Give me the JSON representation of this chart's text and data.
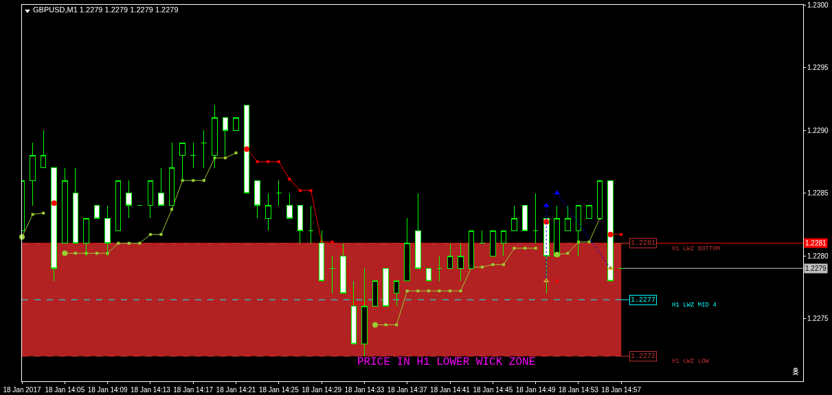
{
  "chart_data": {
    "type": "candlestick",
    "title": "GBPUSD,M1 1.2279 1.2279 1.2279 1.2279",
    "x": [
      "2017-01-18T14:01",
      "2017-01-18T14:02",
      "2017-01-18T14:03",
      "2017-01-18T14:04",
      "2017-01-18T14:05",
      "2017-01-18T14:06",
      "2017-01-18T14:07",
      "2017-01-18T14:08",
      "2017-01-18T14:09",
      "2017-01-18T14:10",
      "2017-01-18T14:11",
      "2017-01-18T14:12",
      "2017-01-18T14:13",
      "2017-01-18T14:14",
      "2017-01-18T14:15",
      "2017-01-18T14:16",
      "2017-01-18T14:17",
      "2017-01-18T14:18",
      "2017-01-18T14:19",
      "2017-01-18T14:20",
      "2017-01-18T14:21",
      "2017-01-18T14:22",
      "2017-01-18T14:23",
      "2017-01-18T14:24",
      "2017-01-18T14:25",
      "2017-01-18T14:26",
      "2017-01-18T14:27",
      "2017-01-18T14:28",
      "2017-01-18T14:29",
      "2017-01-18T14:30",
      "2017-01-18T14:31",
      "2017-01-18T14:32",
      "2017-01-18T14:33",
      "2017-01-18T14:34",
      "2017-01-18T14:35",
      "2017-01-18T14:36",
      "2017-01-18T14:37",
      "2017-01-18T14:38",
      "2017-01-18T14:39",
      "2017-01-18T14:40",
      "2017-01-18T14:41",
      "2017-01-18T14:42",
      "2017-01-18T14:43",
      "2017-01-18T14:44",
      "2017-01-18T14:45",
      "2017-01-18T14:46",
      "2017-01-18T14:47",
      "2017-01-18T14:48",
      "2017-01-18T14:49",
      "2017-01-18T14:50",
      "2017-01-18T14:51",
      "2017-01-18T14:52",
      "2017-01-18T14:53",
      "2017-01-18T14:54",
      "2017-01-18T14:55",
      "2017-01-18T14:56",
      "2017-01-18T14:57"
    ],
    "ohlc": [
      [
        1.2282,
        1.2286,
        1.2282,
        1.2286
      ],
      [
        1.2286,
        1.2289,
        1.2284,
        1.2288
      ],
      [
        1.2287,
        1.229,
        1.2287,
        1.2288
      ],
      [
        1.2287,
        1.2287,
        1.2278,
        1.2279
      ],
      [
        1.2281,
        1.2287,
        1.2281,
        1.2286
      ],
      [
        1.2285,
        1.2287,
        1.2281,
        1.2281
      ],
      [
        1.2281,
        1.2283,
        1.228,
        1.2283
      ],
      [
        1.2284,
        1.2284,
        1.2283,
        1.2283
      ],
      [
        1.2283,
        1.2284,
        1.228,
        1.2281
      ],
      [
        1.2282,
        1.2286,
        1.2282,
        1.2286
      ],
      [
        1.2285,
        1.2286,
        1.2283,
        1.2284
      ],
      [
        1.2284,
        1.2284,
        1.2284,
        1.2284
      ],
      [
        1.2284,
        1.2286,
        1.2283,
        1.2286
      ],
      [
        1.2285,
        1.2287,
        1.2284,
        1.2284
      ],
      [
        1.2284,
        1.2289,
        1.2284,
        1.2287
      ],
      [
        1.2288,
        1.2289,
        1.2286,
        1.2289
      ],
      [
        1.2288,
        1.2289,
        1.2287,
        1.2288
      ],
      [
        1.2289,
        1.229,
        1.2287,
        1.2289
      ],
      [
        1.2288,
        1.2292,
        1.2287,
        1.2291
      ],
      [
        1.2291,
        1.2291,
        1.2288,
        1.229
      ],
      [
        1.229,
        1.2291,
        1.229,
        1.2291
      ],
      [
        1.2292,
        1.2292,
        1.2285,
        1.2285
      ],
      [
        1.2286,
        1.2286,
        1.2283,
        1.2284
      ],
      [
        1.2283,
        1.2285,
        1.2282,
        1.2284
      ],
      [
        1.2285,
        1.2286,
        1.2284,
        1.2285
      ],
      [
        1.2284,
        1.2285,
        1.2283,
        1.2283
      ],
      [
        1.2284,
        1.2284,
        1.2281,
        1.2282
      ],
      [
        1.2282,
        1.2284,
        1.2281,
        1.2282
      ],
      [
        1.2281,
        1.2282,
        1.2278,
        1.2278
      ],
      [
        1.2279,
        1.228,
        1.2277,
        1.2279
      ],
      [
        1.228,
        1.2281,
        1.2277,
        1.2277
      ],
      [
        1.2276,
        1.2278,
        1.2273,
        1.2273
      ],
      [
        1.2273,
        1.2279,
        1.2272,
        1.2276
      ],
      [
        1.2276,
        1.2278,
        1.2276,
        1.2278
      ],
      [
        1.2279,
        1.2279,
        1.2276,
        1.2276
      ],
      [
        1.2277,
        1.2278,
        1.2276,
        1.2278
      ],
      [
        1.2278,
        1.2283,
        1.2278,
        1.2281
      ],
      [
        1.2282,
        1.2285,
        1.2279,
        1.2279
      ],
      [
        1.2279,
        1.2279,
        1.2278,
        1.2278
      ],
      [
        1.2279,
        1.228,
        1.2278,
        1.2279
      ],
      [
        1.2279,
        1.2281,
        1.2279,
        1.228
      ],
      [
        1.2279,
        1.2281,
        1.2278,
        1.228
      ],
      [
        1.2279,
        1.2282,
        1.2279,
        1.2282
      ],
      [
        1.2281,
        1.2282,
        1.2281,
        1.2281
      ],
      [
        1.228,
        1.2282,
        1.228,
        1.2282
      ],
      [
        1.2281,
        1.2282,
        1.228,
        1.2282
      ],
      [
        1.2282,
        1.2284,
        1.2282,
        1.2283
      ],
      [
        1.2284,
        1.2284,
        1.2282,
        1.2282
      ],
      [
        1.2282,
        1.2285,
        1.2281,
        1.2282
      ],
      [
        1.2283,
        1.2283,
        1.2277,
        1.228
      ],
      [
        1.228,
        1.2284,
        1.228,
        1.2283
      ],
      [
        1.2282,
        1.2284,
        1.2282,
        1.2283
      ],
      [
        1.2282,
        1.2284,
        1.228,
        1.2284
      ],
      [
        1.2283,
        1.2284,
        1.2283,
        1.2284
      ],
      [
        1.2283,
        1.2286,
        1.2283,
        1.2286
      ],
      [
        1.2286,
        1.2286,
        1.2278,
        1.2278
      ],
      [
        1.2279,
        1.2279,
        1.2279,
        1.2279
      ]
    ],
    "color": "#00ff00",
    "colors": [
      "#000000",
      "#000000",
      "#000000",
      "#ffffff",
      "#000000",
      "#ffffff",
      "#000000",
      "#ffffff",
      "#ffffff",
      "#000000",
      "#ffffff",
      "#00ff00",
      "#000000",
      "#ffffff",
      "#000000",
      "#000000",
      "#00ff00",
      "#00ff00",
      "#000000",
      "#ffffff",
      "#000000",
      "#ffffff",
      "#ffffff",
      "#000000",
      "#00ff00",
      "#ffffff",
      "#ffffff",
      "#00ff00",
      "#ffffff",
      "#00ff00",
      "#ffffff",
      "#ffffff",
      "#000000",
      "#000000",
      "#ffffff",
      "#000000",
      "#000000",
      "#ffffff",
      "#ffffff",
      "#00ff00",
      "#000000",
      "#000000",
      "#000000",
      "#00ff00",
      "#000000",
      "#000000",
      "#000000",
      "#ffffff",
      "#00ff00",
      "#ffffff",
      "#000000",
      "#000000",
      "#000000",
      "#000000",
      "#000000",
      "#ffffff",
      "#00ff00"
    ],
    "series": [
      {
        "type": "line",
        "color": "#9acd32",
        "marker": "square",
        "values": [
          1.22815,
          1.22833,
          1.22834,
          null,
          1.22802,
          1.22802,
          1.22802,
          1.22802,
          1.22802,
          1.2281,
          1.2281,
          1.2281,
          1.22817,
          1.22817,
          1.22837,
          1.2286,
          1.2286,
          1.2286,
          1.22878,
          1.22878,
          1.22882,
          null,
          null,
          null,
          null,
          null,
          null,
          null,
          null,
          null,
          null,
          null,
          null,
          1.22745,
          1.22745,
          1.22745,
          1.22772,
          1.22772,
          1.22772,
          1.22772,
          1.22772,
          1.22772,
          1.22791,
          1.22791,
          1.22793,
          1.22793,
          1.22806,
          1.22806,
          1.22806,
          null,
          1.22801,
          1.22802,
          1.22811,
          1.22811,
          1.2283,
          null,
          null
        ]
      },
      {
        "type": "line",
        "color": "#ff0000",
        "marker": "square",
        "values": [
          null,
          null,
          null,
          null,
          null,
          null,
          null,
          null,
          null,
          null,
          null,
          null,
          null,
          null,
          null,
          null,
          null,
          null,
          null,
          null,
          null,
          1.22885,
          1.22875,
          1.22875,
          1.22875,
          1.22861,
          1.22852,
          1.22852,
          1.22811,
          1.22811,
          1.22804,
          1.22762,
          1.22762,
          null,
          null,
          null,
          null,
          null,
          null,
          null,
          null,
          null,
          null,
          null,
          null,
          null,
          null,
          null,
          null,
          null,
          1.2278,
          null,
          null,
          null,
          null,
          1.22817,
          1.22817
        ]
      },
      {
        "type": "line",
        "color": "#0000ff",
        "marker": "none",
        "line_style": "dotted",
        "x": [
          "2017-01-18T14:50",
          "2017-01-18T14:50"
        ],
        "values": [
          1.2284,
          1.2278
        ]
      },
      {
        "type": "line",
        "color": "#0000ff",
        "marker": "none",
        "line_style": "dotted",
        "x": [
          "2017-01-18T14:51",
          "2017-01-18T14:56"
        ],
        "values": [
          1.2285,
          1.2279
        ]
      },
      {
        "type": "scatter",
        "color": "#9acd32",
        "marker": "circle",
        "x": [
          "2017-01-18T14:01",
          "2017-01-18T14:05",
          "2017-01-18T14:34",
          "2017-01-18T14:51"
        ],
        "values": [
          1.22815,
          1.22802,
          1.22745,
          1.22801
        ]
      },
      {
        "type": "scatter",
        "color": "#ff0000",
        "marker": "circle",
        "x": [
          "2017-01-18T14:04",
          "2017-01-18T14:22",
          "2017-01-18T14:50",
          "2017-01-18T14:56"
        ],
        "values": [
          1.22842,
          1.22885,
          1.22827,
          1.22817
        ]
      },
      {
        "type": "scatter",
        "color": "#0000ff",
        "marker": "triangle",
        "x": [
          "2017-01-18T14:50",
          "2017-01-18T14:51"
        ],
        "values": [
          1.2284,
          1.2285
        ]
      },
      {
        "type": "scatter",
        "color": "#daa520",
        "marker": "triangle",
        "x": [
          "2017-01-18T14:50",
          "2017-01-18T14:56"
        ],
        "values": [
          1.2278,
          1.2279
        ]
      }
    ],
    "xlim": [
      "2017-01-18T14:01",
      "2017-01-18T15:14"
    ],
    "xticks": [
      {
        "value": "2017-01-18T14:01",
        "label": "18 Jan 2017"
      },
      {
        "value": "2017-01-18T14:05",
        "label": "18 Jan 14:05"
      },
      {
        "value": "2017-01-18T14:09",
        "label": "18 Jan 14:09"
      },
      {
        "value": "2017-01-18T14:13",
        "label": "18 Jan 14:13"
      },
      {
        "value": "2017-01-18T14:17",
        "label": "18 Jan 14:17"
      },
      {
        "value": "2017-01-18T14:21",
        "label": "18 Jan 14:21"
      },
      {
        "value": "2017-01-18T14:25",
        "label": "18 Jan 14:25"
      },
      {
        "value": "2017-01-18T14:29",
        "label": "18 Jan 14:29"
      },
      {
        "value": "2017-01-18T14:33",
        "label": "18 Jan 14:33"
      },
      {
        "value": "2017-01-18T14:37",
        "label": "18 Jan 14:37"
      },
      {
        "value": "2017-01-18T14:41",
        "label": "18 Jan 14:41"
      },
      {
        "value": "2017-01-18T14:45",
        "label": "18 Jan 14:45"
      },
      {
        "value": "2017-01-18T14:49",
        "label": "18 Jan 14:49"
      },
      {
        "value": "2017-01-18T14:53",
        "label": "18 Jan 14:53"
      },
      {
        "value": "2017-01-18T14:57",
        "label": "18 Jan 14:57"
      }
    ],
    "ylim": [
      1.227,
      1.23
    ],
    "yticks": [
      1.2275,
      {
        "value": 1.228,
        "label": "1.2280"
      },
      1.2285,
      {
        "value": 1.229,
        "label": "1.2290"
      },
      1.2295,
      {
        "value": 1.23,
        "label": "1.2300"
      }
    ],
    "bands": [
      {
        "axis": "y",
        "from": 1.2272,
        "to": 1.2281,
        "color": "#b22222"
      }
    ],
    "ref_lines": [
      {
        "axis": "y",
        "value": 1.2281,
        "label": "1.2281",
        "color": "#ff0000"
      },
      {
        "axis": "y",
        "value": 1.2279,
        "label": "1.2279",
        "color": "#c0c0c0"
      },
      {
        "axis": "y",
        "value": 1.2281,
        "label": "H1 LWZ BOTTOM",
        "color": "#c03030",
        "line_style": "dashed"
      },
      {
        "axis": "y",
        "value": 1.22765,
        "label": "H1 LWZ MID 4",
        "color": "#00ffff",
        "line_style": "dashed"
      },
      {
        "axis": "y",
        "value": 1.2272,
        "label": "H1 LWZ LOW",
        "color": "#c03030",
        "line_style": "dashed"
      }
    ],
    "annotations": [
      {
        "text": "1.2281",
        "x": "2017-01-18T14:57",
        "y": 1.2281
      },
      {
        "text": "1.2277",
        "x": "2017-01-18T14:57",
        "y": 1.22765
      },
      {
        "text": "1.2272",
        "x": "2017-01-18T14:57",
        "y": 1.2272
      },
      "PRICE IN H1 LOWER WICK ZONE"
    ]
  }
}
